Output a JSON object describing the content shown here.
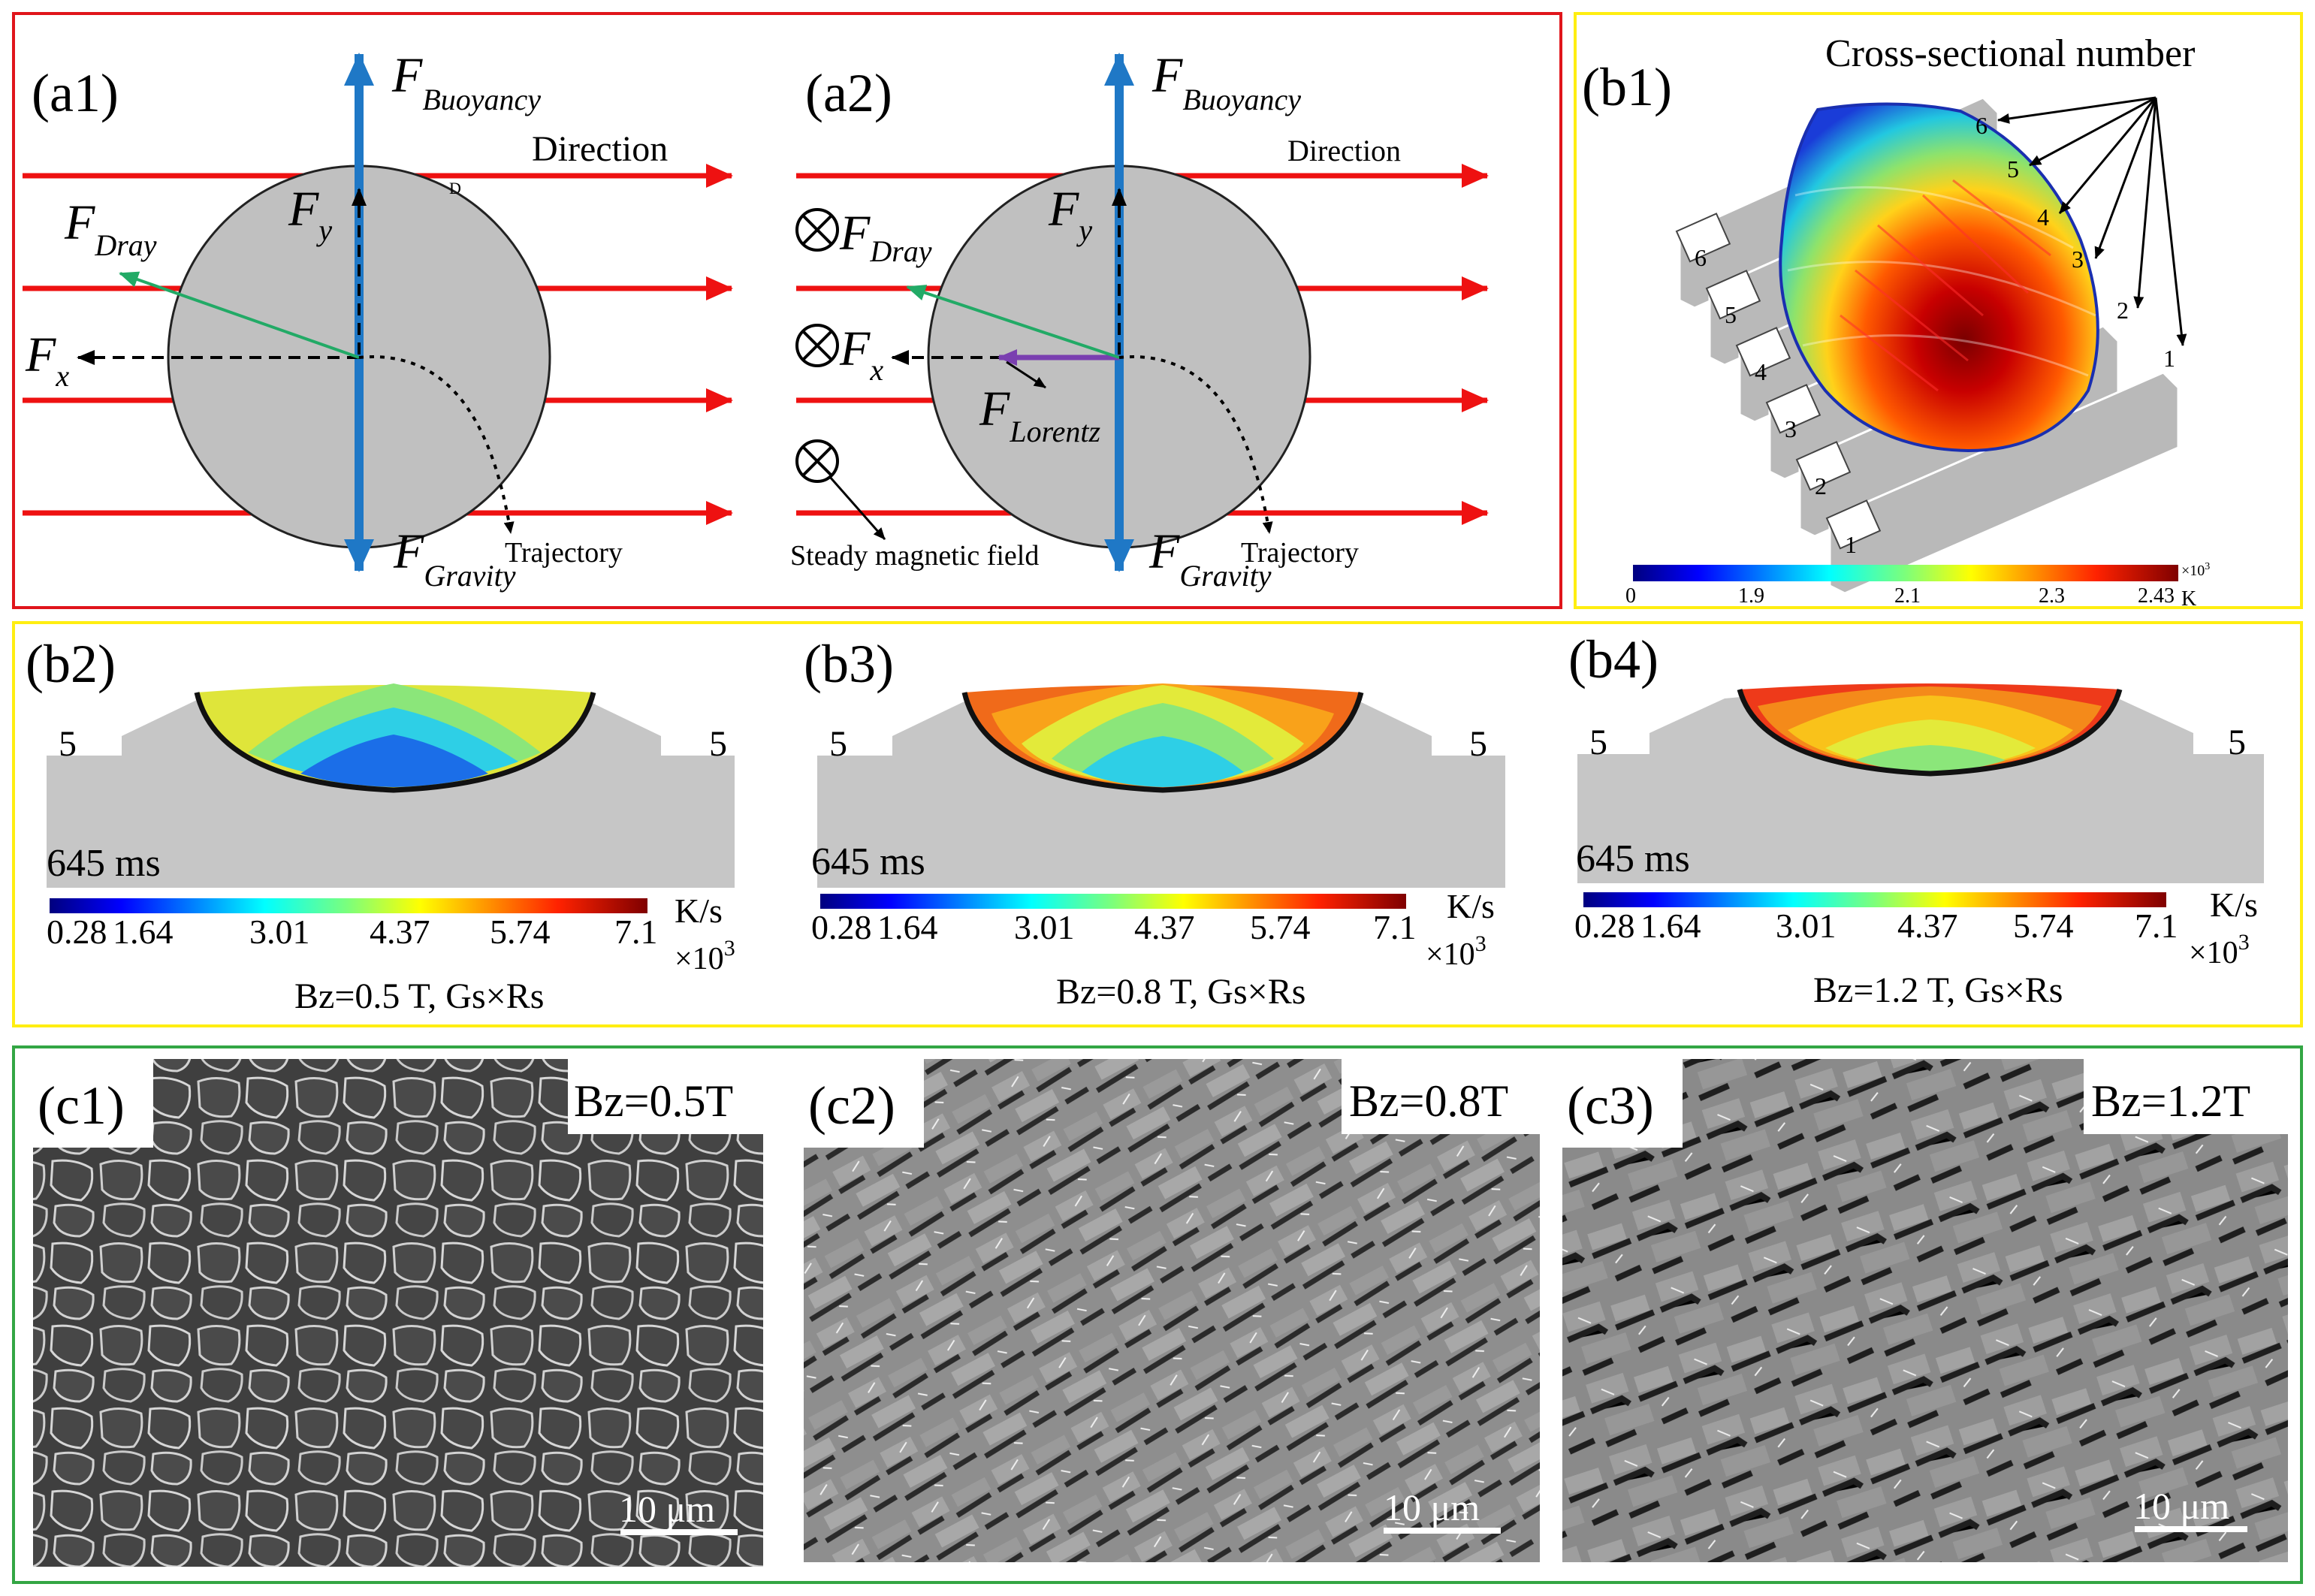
{
  "panel_a1": {
    "label": "(a1)",
    "buoyancy_main": "F",
    "buoyancy_sub": "Buoyancy",
    "gravity_main": "F",
    "gravity_sub": "Gravity",
    "fy_main": "F",
    "fy_sub": "y",
    "fx_main": "F",
    "fx_sub": "x",
    "drag_main": "F",
    "drag_sub": "Dray",
    "direction": "Direction",
    "trajectory": "Trajectory",
    "mark": "D"
  },
  "panel_a2": {
    "label": "(a2)",
    "buoyancy_main": "F",
    "buoyancy_sub": "Buoyancy",
    "gravity_main": "F",
    "gravity_sub": "Gravity",
    "fy_main": "F",
    "fy_sub": "y",
    "fx_main": "F",
    "fx_sub": "x",
    "drag_main": "F",
    "drag_sub": "Dray",
    "lorentz_main": "F",
    "lorentz_sub": "Lorentz",
    "direction": "Direction",
    "trajectory": "Trajectory",
    "field": "Steady magnetic field"
  },
  "panel_b1": {
    "label": "(b1)",
    "title": "Cross-sectional number",
    "left_numbers": [
      "6",
      "5",
      "4",
      "3",
      "2",
      "1"
    ],
    "right_numbers": [
      "6",
      "5",
      "4",
      "3",
      "2",
      "1"
    ],
    "colorbar_ticks": [
      "0",
      "1.9",
      "2.1",
      "2.3",
      "2.43"
    ],
    "colorbar_exp": "×10",
    "colorbar_exp_power": "3",
    "colorbar_unit": "K"
  },
  "panels_b": [
    {
      "label": "(b2)",
      "section": "5",
      "time": "645 ms",
      "ticks": [
        "0.28",
        "1.64",
        "3.01",
        "4.37",
        "5.74",
        "7.1"
      ],
      "unit": "K/s",
      "exp": "×10",
      "exp_power": "3",
      "caption": "Bz=0.5 T, Gs×Rs"
    },
    {
      "label": "(b3)",
      "section": "5",
      "time": "645 ms",
      "ticks": [
        "0.28",
        "1.64",
        "3.01",
        "4.37",
        "5.74",
        "7.1"
      ],
      "unit": "K/s",
      "exp": "×10",
      "exp_power": "3",
      "caption": "Bz=0.8 T, Gs×Rs"
    },
    {
      "label": "(b4)",
      "section": "5",
      "time": "645 ms",
      "ticks": [
        "0.28",
        "1.64",
        "3.01",
        "4.37",
        "5.74",
        "7.1"
      ],
      "unit": "K/s",
      "exp": "×10",
      "exp_power": "3",
      "caption": "Bz=1.2 T, Gs×Rs"
    }
  ],
  "panels_c": [
    {
      "label": "(c1)",
      "field": "Bz=0.5T",
      "scale": "10 μm"
    },
    {
      "label": "(c2)",
      "field": "Bz=0.8T",
      "scale": "10 μm"
    },
    {
      "label": "(c3)",
      "field": "Bz=1.2T",
      "scale": "10 μm"
    }
  ],
  "colors": {
    "frame_a": "#e0151b",
    "frame_b": "#ffee11",
    "frame_c": "#33a644",
    "field_line": "#ee1111",
    "force_blue": "#1f78c6",
    "drag_green": "#22aa66",
    "lorentz_purple": "#7a3fb0",
    "droplet": "#c0c0c0",
    "substrate": "#c8c8c8"
  }
}
